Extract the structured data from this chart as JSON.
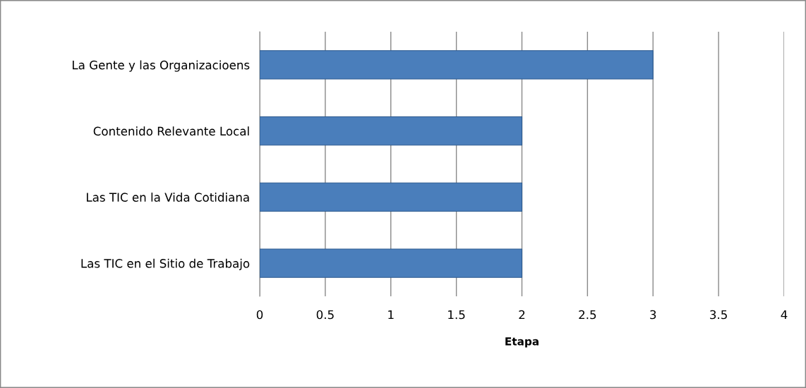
{
  "chart_data": {
    "type": "bar",
    "orientation": "horizontal",
    "categories": [
      "La Gente y las Organizacioens",
      "Contenido Relevante Local",
      "Las TIC en la Vida Cotidiana",
      "Las TIC en el Sitio de Trabajo"
    ],
    "values": [
      3,
      2,
      2,
      2
    ],
    "color": "#4a7ebb",
    "xlim": [
      0,
      4
    ],
    "xticks": [
      0,
      0.5,
      1,
      1.5,
      2,
      2.5,
      3,
      3.5,
      4
    ],
    "xlabel": "Etapa",
    "grid": "x",
    "legend": false
  }
}
